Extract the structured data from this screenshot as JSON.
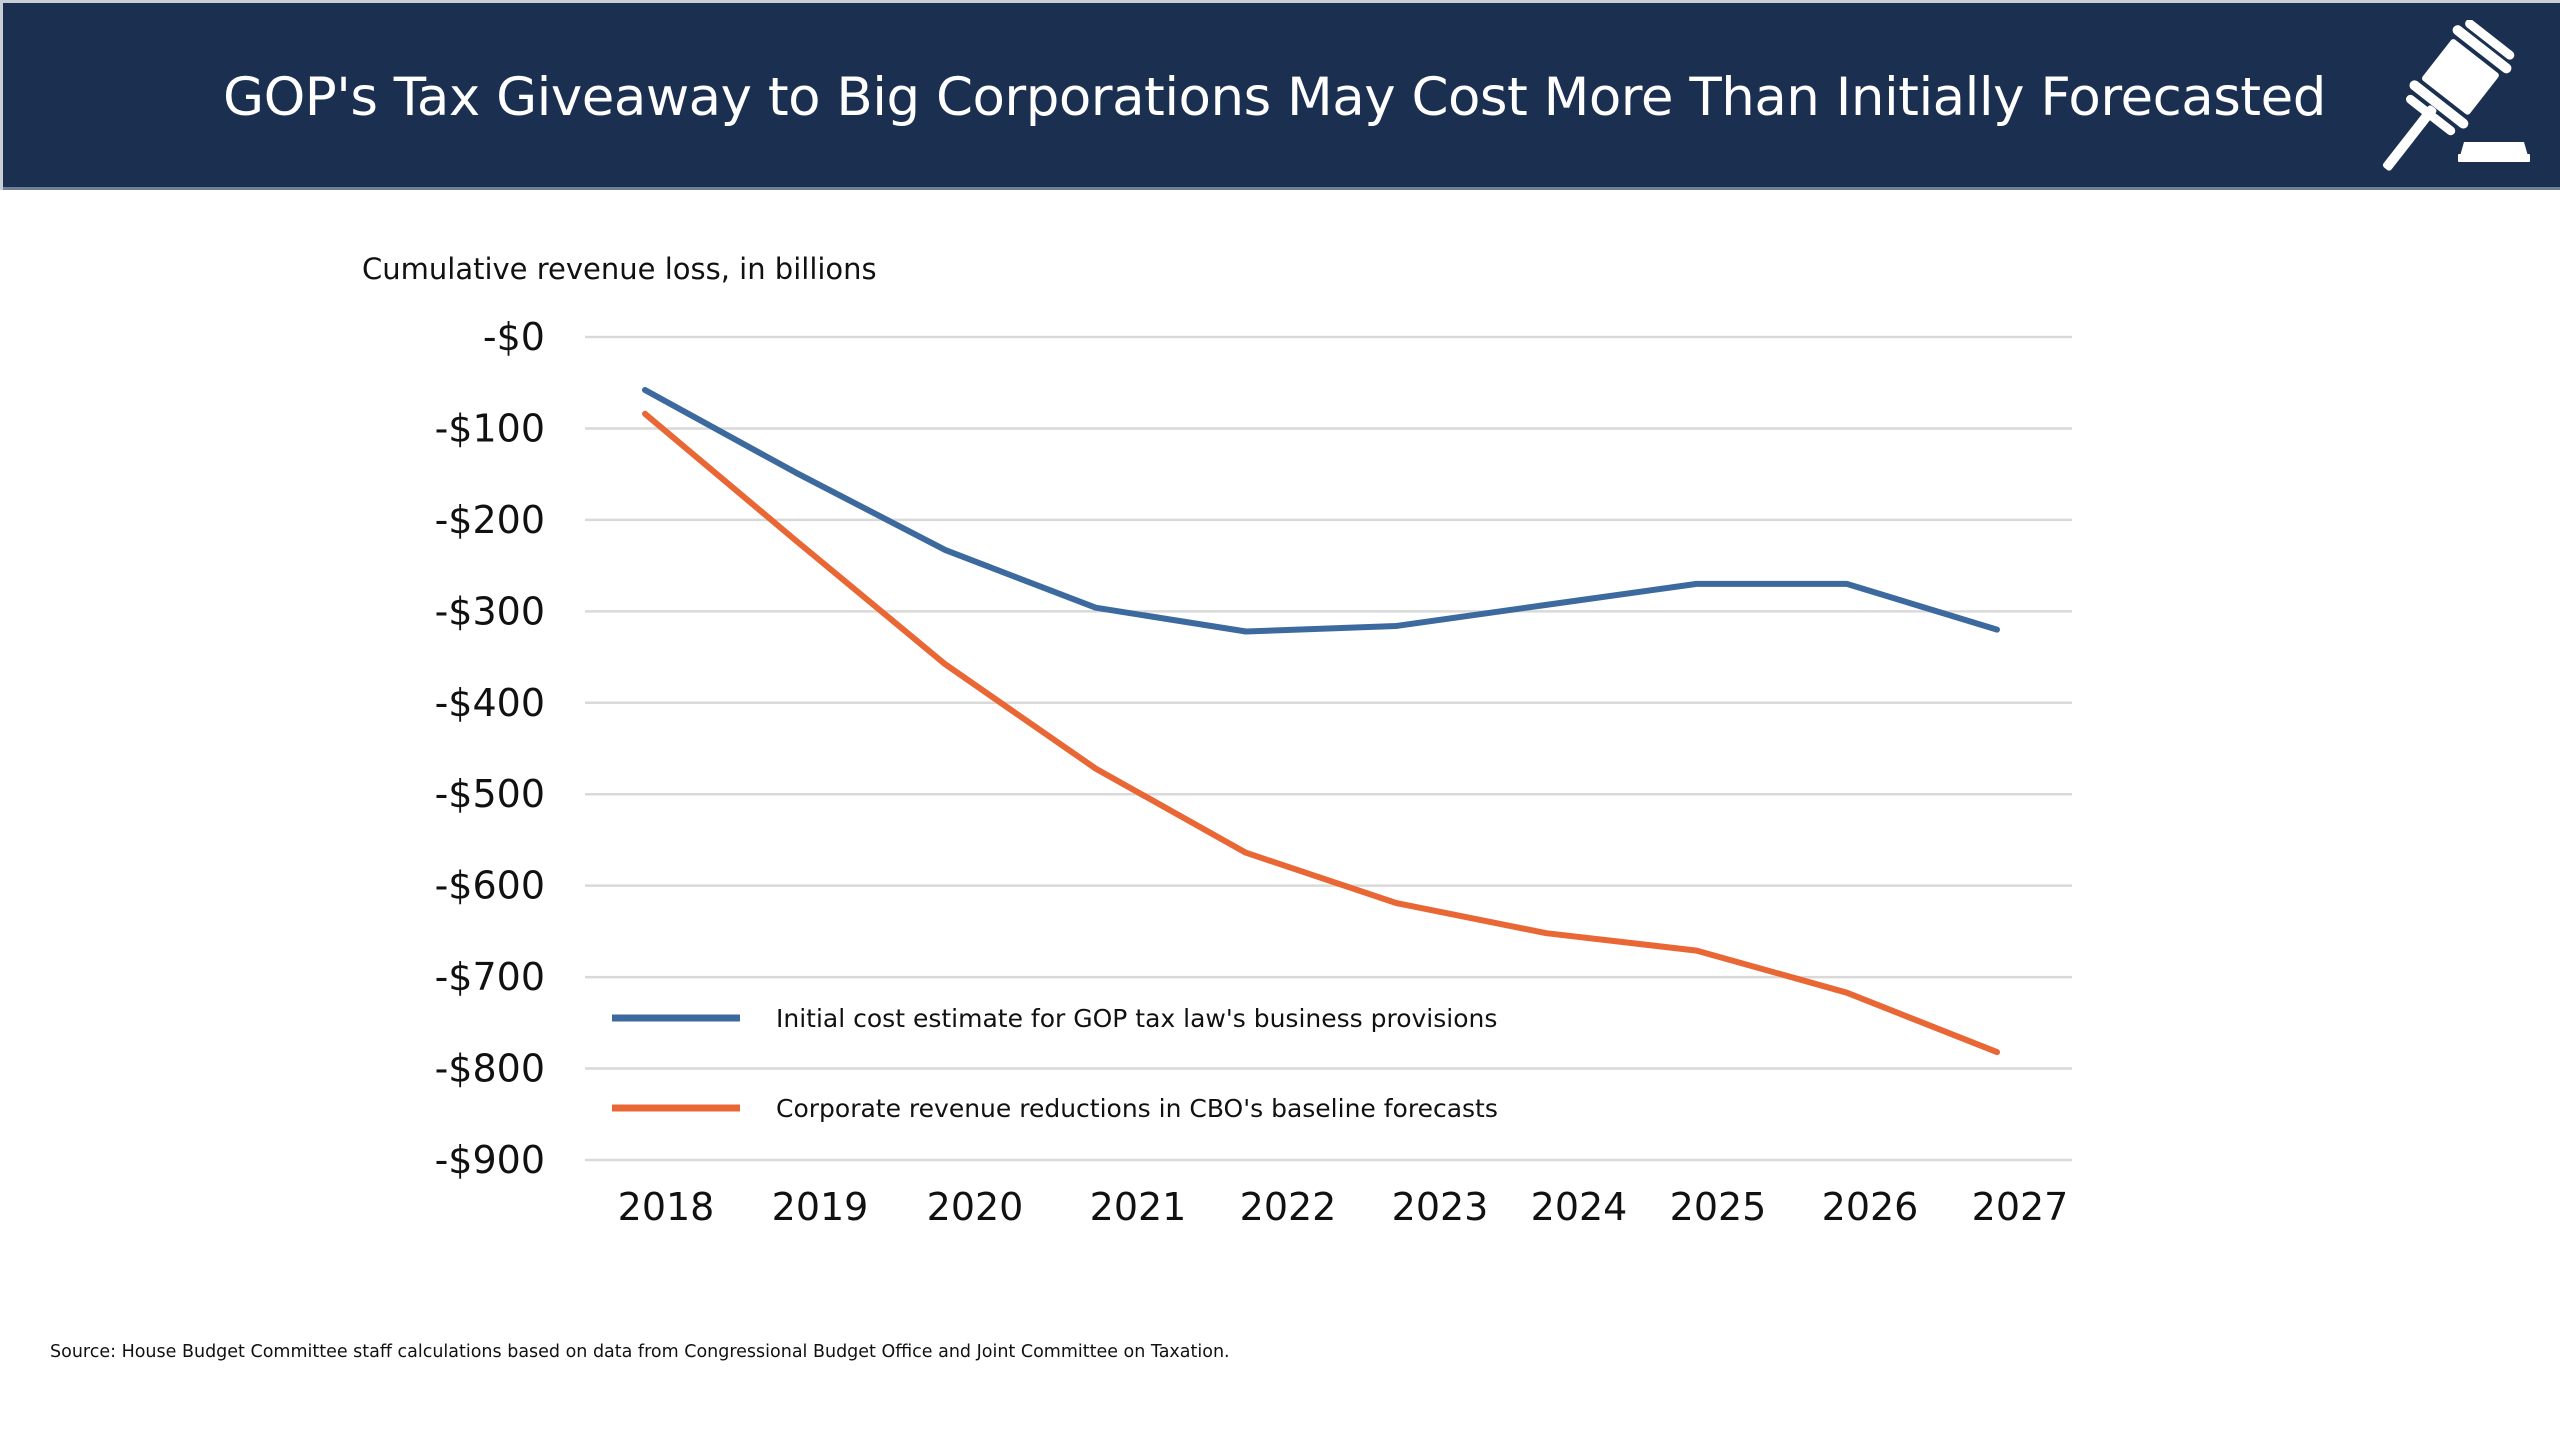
{
  "header": {
    "title": "GOP's Tax Giveaway to Big Corporations May Cost More Than Initially Forecasted",
    "icon": "gavel-icon",
    "background_color": "#1b3050"
  },
  "source": "Source: House Budget Committee staff calculations based on data from Congressional Budget Office and Joint Committee on Taxation.",
  "chart_data": {
    "type": "line",
    "title": "GOP's Tax Giveaway to Big Corporations May Cost More Than Initially Forecasted",
    "ylabel": "Cumulative revenue loss, in billions",
    "xlabel": "",
    "x": [
      "2018",
      "2019",
      "2020",
      "2021",
      "2022",
      "2023",
      "2024",
      "2025",
      "2026",
      "2027"
    ],
    "ylim": [
      -900,
      0
    ],
    "yticks": [
      0,
      -100,
      -200,
      -300,
      -400,
      -500,
      -600,
      -700,
      -800,
      -900
    ],
    "ytick_labels": [
      "-$0",
      "-$100",
      "-$200",
      "-$300",
      "-$400",
      "-$500",
      "-$600",
      "-$700",
      "-$800",
      "-$900"
    ],
    "grid": "horizontal",
    "legend_position": "bottom-left",
    "series": [
      {
        "name": "Initial cost estimate for GOP tax law's business provisions",
        "color": "#3d6a9e",
        "values": [
          -58,
          -148,
          -233,
          -296,
          -322,
          -316,
          -293,
          -270,
          -270,
          -320
        ]
      },
      {
        "name": "Corporate revenue reductions in CBO's baseline forecasts",
        "color": "#e96735",
        "values": [
          -84,
          -222,
          -358,
          -472,
          -564,
          -619,
          -652,
          -671,
          -717,
          -782
        ]
      }
    ]
  }
}
